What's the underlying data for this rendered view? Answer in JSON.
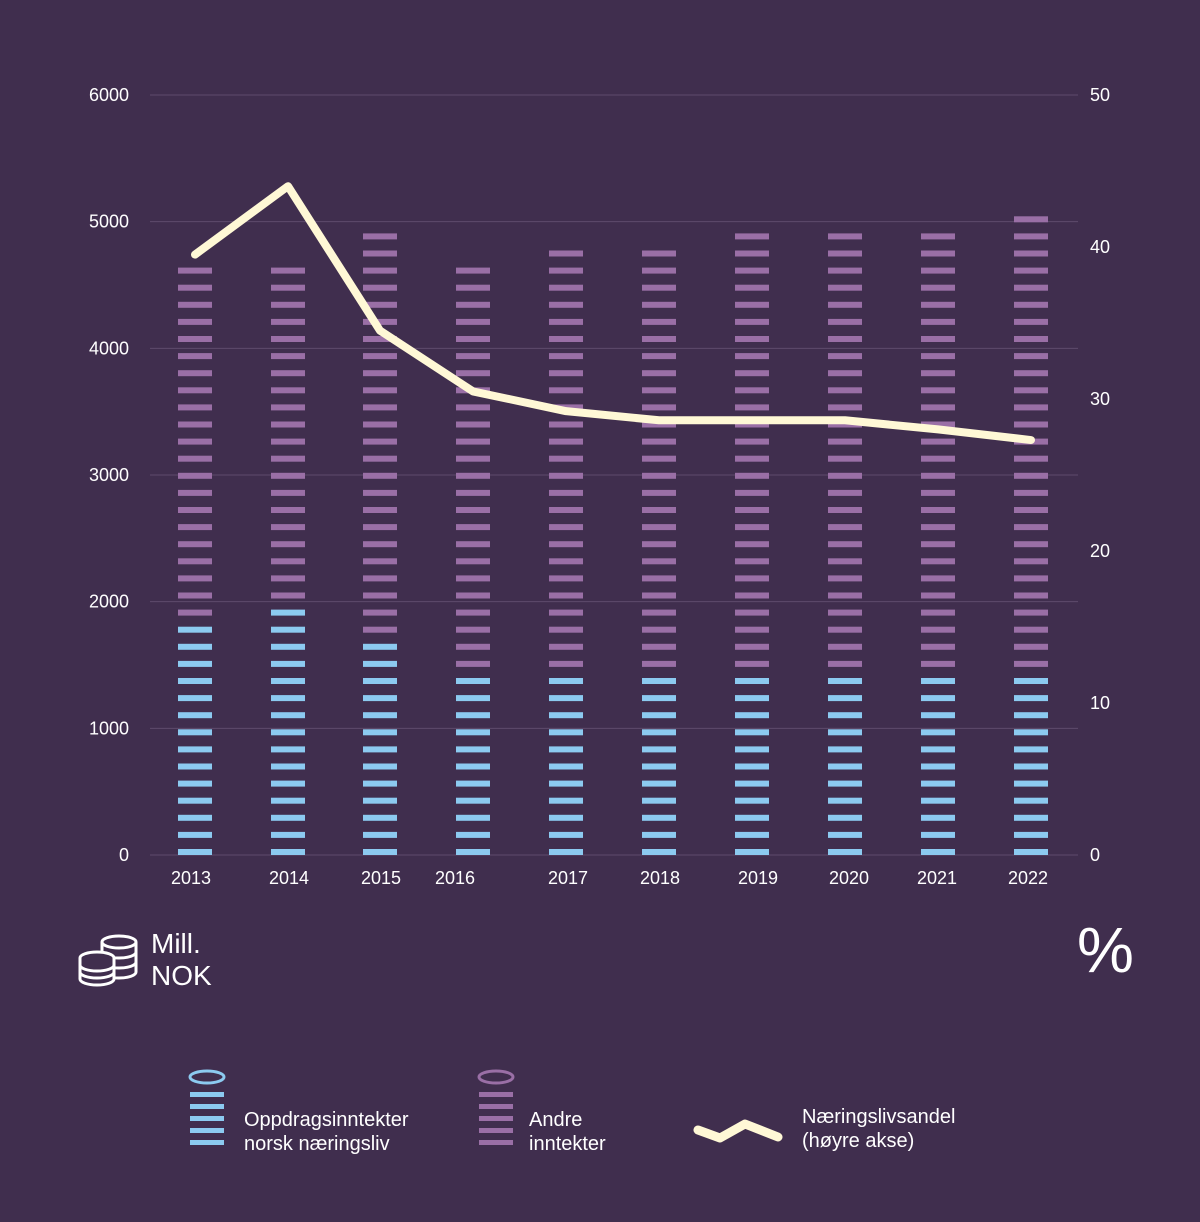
{
  "chart_data": {
    "type": "bar",
    "stacked": true,
    "categories": [
      "2013",
      "2014",
      "2015",
      "2016",
      "2017",
      "2018",
      "2019",
      "2020",
      "2021",
      "2022"
    ],
    "series": [
      {
        "name": "Oppdragsinntekter norsk næringsliv",
        "color": "#8ccaf0",
        "axis": "left",
        "values": [
          1830,
          2050,
          1670,
          1430,
          1430,
          1430,
          1430,
          1430,
          1430,
          1430
        ]
      },
      {
        "name": "Andre inntekter",
        "color": "#9a6fa6",
        "axis": "left",
        "values": [
          2840,
          2630,
          3230,
          3310,
          3400,
          3400,
          3550,
          3470,
          3560,
          3680
        ]
      },
      {
        "name": "Næringslivsandel (høyre akse)",
        "type": "line",
        "color": "#fff8d6",
        "axis": "right",
        "values": [
          39.5,
          44,
          34.5,
          30.5,
          29.2,
          28.6,
          28.6,
          28.6,
          28.0,
          27.3
        ]
      }
    ],
    "y_left": {
      "ticks": [
        "0",
        "1000",
        "2000",
        "3000",
        "4000",
        "5000",
        "6000"
      ],
      "range": [
        0,
        6000
      ]
    },
    "y_right": {
      "ticks": [
        "0",
        "10",
        "20",
        "30",
        "40",
        "50"
      ],
      "range": [
        0,
        50
      ]
    },
    "grid": true,
    "legend_position": "bottom"
  },
  "axis_units": {
    "left_line1": "Mill.",
    "left_line2": "NOK",
    "left_icon": "coins-icon",
    "right_symbol": "%"
  },
  "legend": {
    "item1_line1": "Oppdragsinntekter",
    "item1_line2": "norsk næringsliv",
    "item2_line1": "Andre",
    "item2_line2": "inntekter",
    "item3_line1": "Næringslivsandel",
    "item3_line2": "(høyre akse)"
  },
  "colors": {
    "background": "#402e4e",
    "gridline": "#5e4b6c",
    "blue": "#8ccaf0",
    "purple": "#9a6fa6",
    "line": "#fff8d6"
  }
}
